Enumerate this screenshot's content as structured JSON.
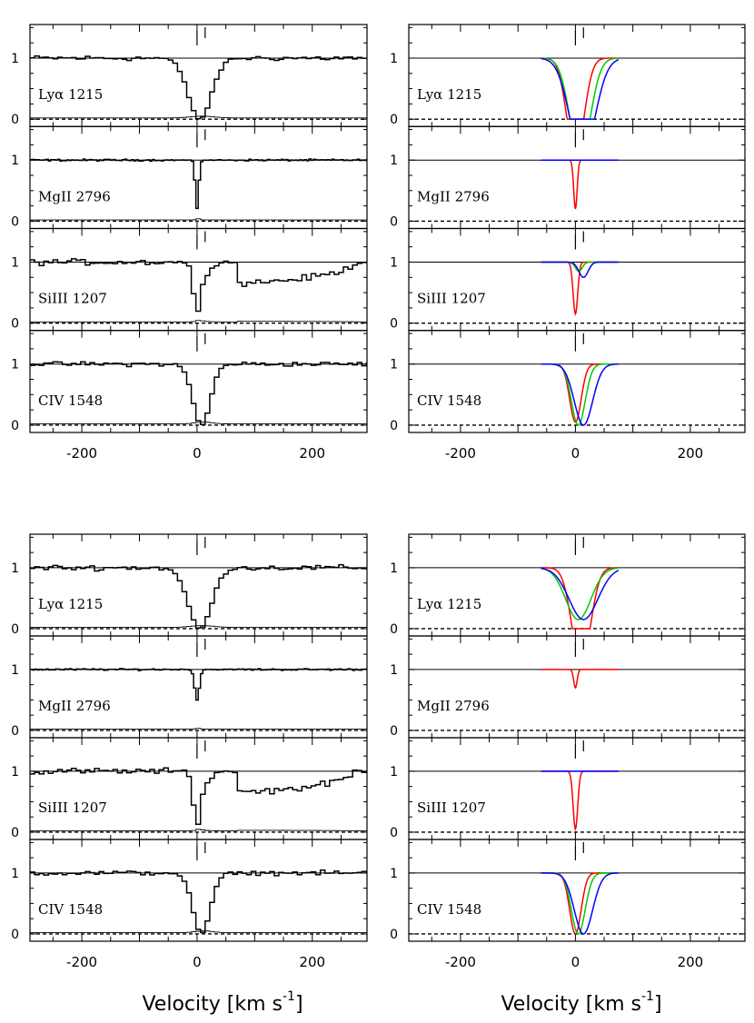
{
  "chart_data": {
    "type": "line",
    "xlabel": "Velocity [km s",
    "xlabel_exponent": "-1",
    "xlabel_suffix": "]",
    "xlim": [
      -290,
      295
    ],
    "x_ticks": [
      -200,
      0,
      200
    ],
    "y_ticks": [
      0,
      1
    ],
    "ylim": [
      -0.12,
      1.55
    ],
    "velocity_markers": [
      0,
      14
    ],
    "colors": {
      "observed": "#000000",
      "comp1": "#ff0000",
      "comp2": "#00cc00",
      "comp3": "#0000ff",
      "zero": "#000000"
    },
    "transitions": [
      {
        "name": "Lyα 1215"
      },
      {
        "name": "MgII 2796"
      },
      {
        "name": "SiIII 1207"
      },
      {
        "name": "CIV 1548"
      }
    ],
    "models": [
      {
        "observed_panels": [
          {
            "line": "Lyα 1215",
            "absorption": [
              {
                "center": 5,
                "depth": 1.0,
                "width": 20
              }
            ],
            "noise": 0.035,
            "step": 8,
            "continuum_shift": null
          },
          {
            "line": "MgII 2796",
            "absorption": [
              {
                "center": 0,
                "depth": 0.8,
                "width": 3
              }
            ],
            "noise": 0.012,
            "step": 4,
            "continuum_shift": null
          },
          {
            "line": "SiIII 1207",
            "absorption": [
              {
                "center": 0,
                "depth": 0.85,
                "width": 6
              },
              {
                "center": 14,
                "depth": 0.2,
                "width": 10
              }
            ],
            "noise": 0.04,
            "step": 8,
            "continuum_shift": {
              "from": 70,
              "to": 270,
              "level": 0.65
            }
          },
          {
            "line": "CIV 1548",
            "absorption": [
              {
                "center": 8,
                "depth": 1.0,
                "width": 15
              }
            ],
            "noise": 0.03,
            "step": 8,
            "continuum_shift": null
          }
        ],
        "fit_panels": [
          {
            "line": "Lyα 1215",
            "components": [
              {
                "color": "comp1",
                "center": 0,
                "depth": 1.0,
                "width": 15,
                "sat": true
              },
              {
                "color": "comp2",
                "center": 8,
                "depth": 1.0,
                "width": 18,
                "sat": true
              },
              {
                "color": "comp3",
                "center": 12,
                "depth": 1.0,
                "width": 22,
                "sat": true
              }
            ]
          },
          {
            "line": "MgII 2796",
            "components": [
              {
                "color": "comp1",
                "center": 0,
                "depth": 0.8,
                "width": 3,
                "sat": false
              },
              {
                "color": "comp3",
                "center": 12,
                "depth": 0.0,
                "width": 4,
                "sat": false
              }
            ]
          },
          {
            "line": "SiIII 1207",
            "components": [
              {
                "color": "comp1",
                "center": 0,
                "depth": 0.85,
                "width": 4,
                "sat": false
              },
              {
                "color": "comp2",
                "center": 6,
                "depth": 0.15,
                "width": 6,
                "sat": false
              },
              {
                "color": "comp3",
                "center": 14,
                "depth": 0.25,
                "width": 8,
                "sat": false
              }
            ]
          },
          {
            "line": "CIV 1548",
            "components": [
              {
                "color": "comp1",
                "center": 0,
                "depth": 0.95,
                "width": 10,
                "sat": false
              },
              {
                "color": "comp2",
                "center": 5,
                "depth": 1.0,
                "width": 12,
                "sat": false
              },
              {
                "color": "comp3",
                "center": 14,
                "depth": 1.0,
                "width": 16,
                "sat": false
              }
            ]
          }
        ]
      },
      {
        "observed_panels": [
          {
            "line": "Lyα 1215",
            "absorption": [
              {
                "center": 5,
                "depth": 1.0,
                "width": 20
              }
            ],
            "noise": 0.035,
            "step": 8,
            "continuum_shift": null
          },
          {
            "line": "MgII 2796",
            "absorption": [
              {
                "center": 0,
                "depth": 0.5,
                "width": 4
              }
            ],
            "noise": 0.012,
            "step": 4,
            "continuum_shift": null
          },
          {
            "line": "SiIII 1207",
            "absorption": [
              {
                "center": 0,
                "depth": 0.9,
                "width": 6
              },
              {
                "center": 14,
                "depth": 0.2,
                "width": 10
              }
            ],
            "noise": 0.04,
            "step": 8,
            "continuum_shift": {
              "from": 70,
              "to": 270,
              "level": 0.65
            }
          },
          {
            "line": "CIV 1548",
            "absorption": [
              {
                "center": 8,
                "depth": 1.0,
                "width": 15
              }
            ],
            "noise": 0.03,
            "step": 8,
            "continuum_shift": null
          }
        ],
        "fit_panels": [
          {
            "line": "Lyα 1215",
            "components": [
              {
                "color": "comp1",
                "center": 10,
                "depth": 1.0,
                "width": 16,
                "sat": true
              },
              {
                "color": "comp2",
                "center": 5,
                "depth": 0.85,
                "width": 22,
                "sat": false
              },
              {
                "color": "comp3",
                "center": 14,
                "depth": 0.85,
                "width": 25,
                "sat": false
              }
            ]
          },
          {
            "line": "MgII 2796",
            "components": [
              {
                "color": "comp1",
                "center": 0,
                "depth": 0.3,
                "width": 3,
                "sat": false
              }
            ]
          },
          {
            "line": "SiIII 1207",
            "components": [
              {
                "color": "comp1",
                "center": 0,
                "depth": 0.95,
                "width": 4,
                "sat": false
              },
              {
                "color": "comp3",
                "center": 12,
                "depth": 0.0,
                "width": 4,
                "sat": false
              }
            ]
          },
          {
            "line": "CIV 1548",
            "components": [
              {
                "color": "comp1",
                "center": 0,
                "depth": 1.0,
                "width": 10,
                "sat": false
              },
              {
                "color": "comp2",
                "center": 5,
                "depth": 1.0,
                "width": 12,
                "sat": false
              },
              {
                "color": "comp3",
                "center": 14,
                "depth": 1.0,
                "width": 16,
                "sat": false
              }
            ]
          }
        ]
      }
    ]
  }
}
